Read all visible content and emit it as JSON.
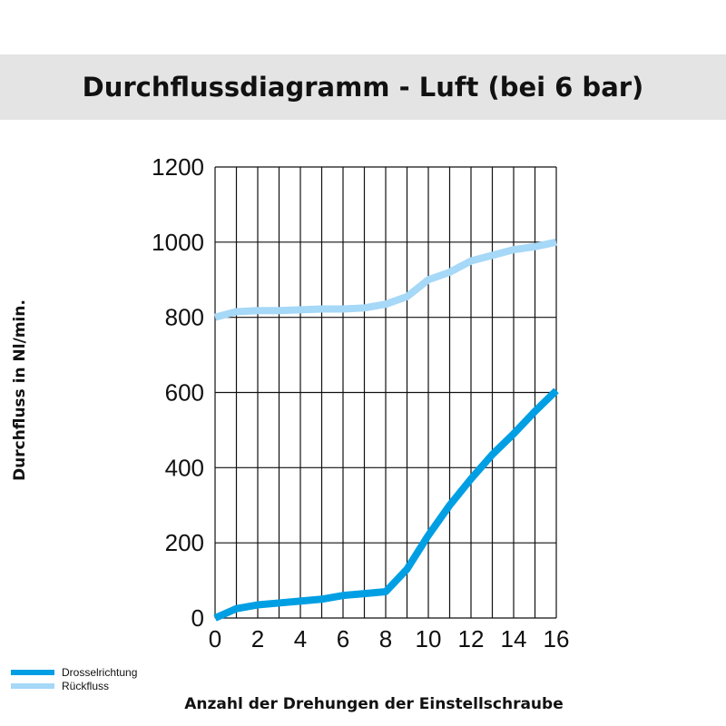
{
  "chart_data": {
    "type": "line",
    "title": "Durchflussdiagramm - Luft (bei 6 bar)",
    "xlabel": "Anzahl der Drehungen der Einstellschraube",
    "ylabel": "Durchfluss in Nl/min.",
    "xlim": [
      0,
      16
    ],
    "ylim": [
      0,
      1200
    ],
    "xticks": [
      0,
      2,
      4,
      6,
      8,
      10,
      12,
      14,
      16
    ],
    "yticks": [
      0,
      200,
      400,
      600,
      800,
      1000,
      1200
    ],
    "grid": true,
    "legend_position": "bottom-left",
    "x": [
      0,
      1,
      2,
      3,
      4,
      5,
      6,
      7,
      8,
      9,
      10,
      11,
      12,
      13,
      14,
      15,
      16
    ],
    "series": [
      {
        "name": "Drosselrichtung",
        "color": "#009fe3",
        "values": [
          0,
          25,
          35,
          40,
          45,
          50,
          60,
          65,
          70,
          130,
          220,
          300,
          370,
          435,
          490,
          550,
          605
        ]
      },
      {
        "name": "Rückfluss",
        "color": "#a6d8f7",
        "values": [
          800,
          815,
          818,
          818,
          820,
          822,
          822,
          825,
          835,
          855,
          900,
          920,
          950,
          965,
          980,
          988,
          1000
        ]
      }
    ]
  }
}
